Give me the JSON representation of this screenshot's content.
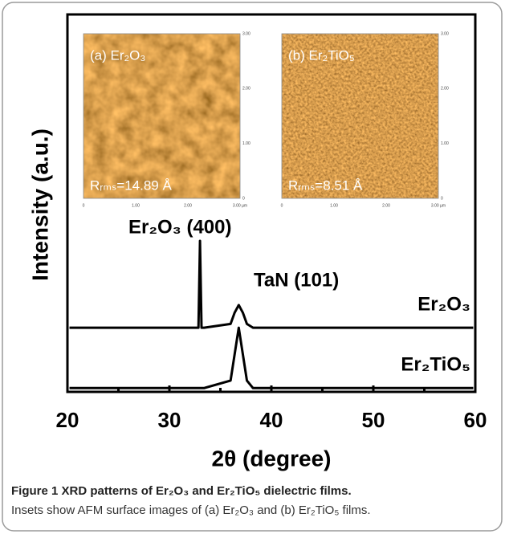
{
  "chart_data": {
    "type": "line",
    "xlabel": "2θ (degree)",
    "ylabel": "Intensity (a.u.)",
    "x": [
      20.2,
      32.6,
      32.85,
      33.0,
      33.15,
      33.4,
      36.0,
      36.4,
      36.8,
      37.2,
      37.6,
      38.2,
      59.8
    ],
    "series": [
      {
        "name": "Er₂O₃",
        "color": "#000000",
        "values": [
          17,
          17,
          17,
          40,
          17,
          17,
          18,
          21,
          23,
          21,
          18,
          17,
          17
        ]
      },
      {
        "name": "Er₂TiO₅",
        "color": "#000000",
        "values": [
          1,
          1,
          1,
          1,
          1,
          1,
          3,
          10,
          17,
          10,
          3,
          1,
          1
        ]
      }
    ],
    "xlim": [
      20,
      60
    ],
    "xticks": [
      20,
      30,
      40,
      50,
      60
    ],
    "xminor": [
      25,
      35,
      45,
      55
    ],
    "ylim": [
      0,
      100
    ],
    "annotations": [
      "Er₂O₃ (400)",
      "TaN (101)"
    ]
  },
  "insets": [
    {
      "label": "(a) Er₂O₃",
      "roughness": "Rᵣₘₛ=14.89 Å",
      "xticks": [
        "0",
        "1.00",
        "2.00",
        "3.00 µm"
      ],
      "yticks": [
        "3.00",
        "2.00",
        "1.00",
        "0"
      ]
    },
    {
      "label": "(b) Er₂TiO₅",
      "roughness": "Rᵣₘₛ=8.51 Å",
      "xticks": [
        "0",
        "1.00",
        "2.00",
        "3.00 µm"
      ],
      "yticks": [
        "3.00",
        "2.00",
        "1.00",
        "0"
      ]
    }
  ],
  "caption": {
    "label": "Figure 1",
    "title": "XRD patterns of Er₂O₃ and Er₂TiO₅ dielectric films.",
    "text": "Insets show AFM surface images of (a) Er₂O₃ and (b) Er₂TiO₅ films."
  }
}
